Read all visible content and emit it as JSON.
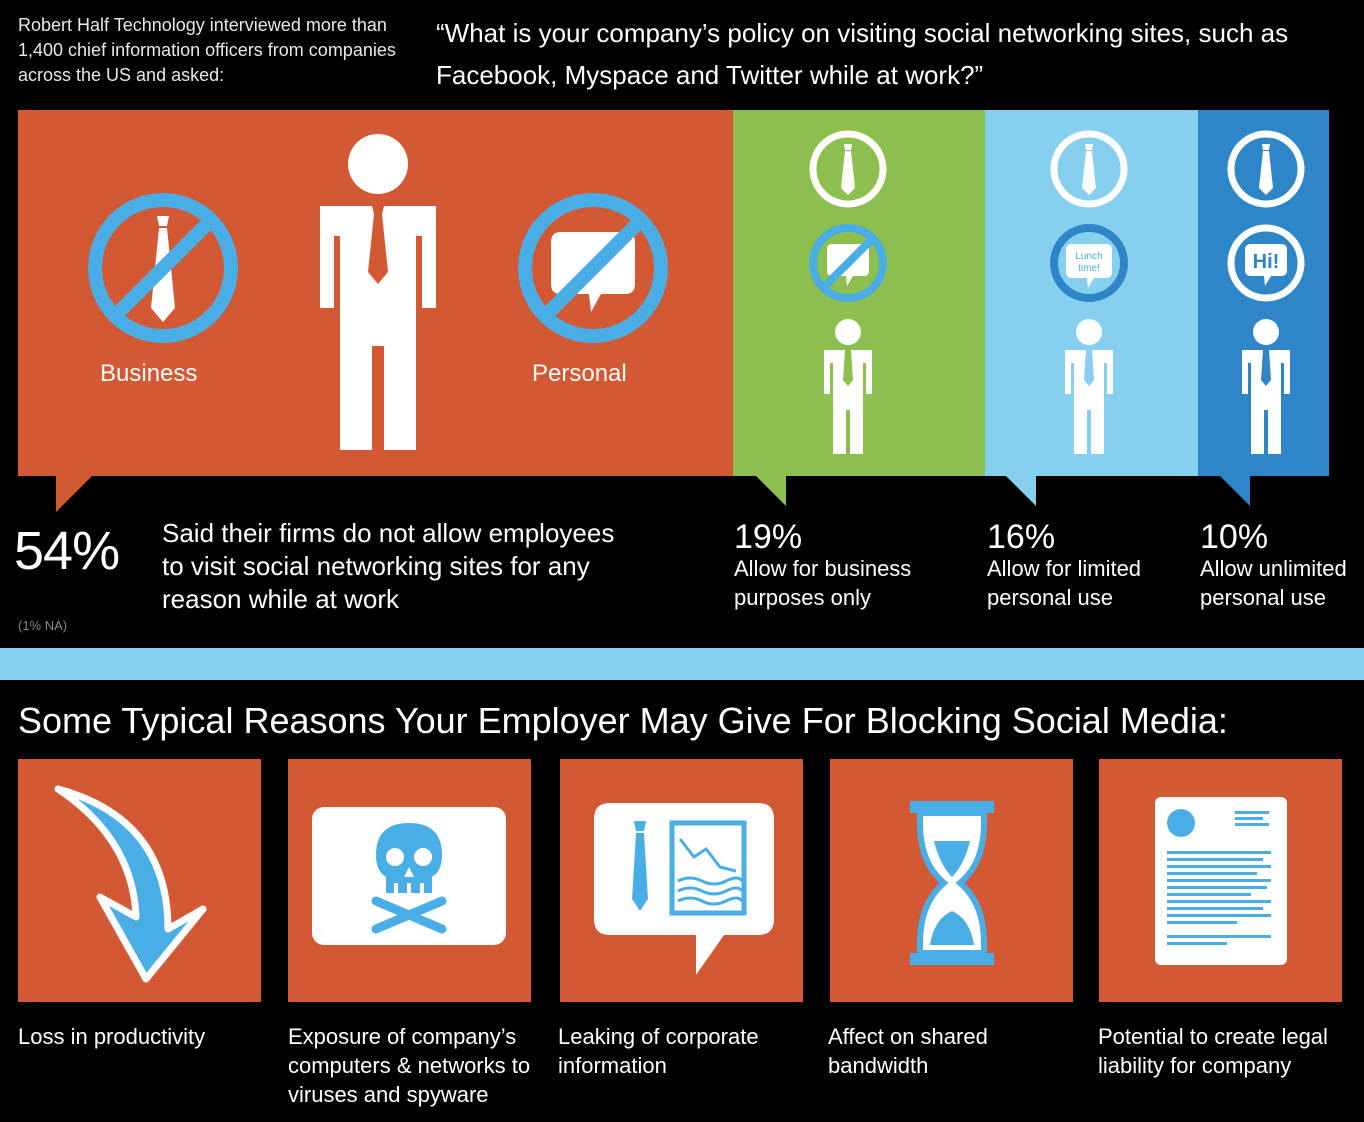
{
  "intro_text": "Robert Half Technology interviewed more than 1,400 chief information officers from companies across the US and asked:",
  "question": "“What is your company’s policy on visiting social networking sites, such as Facebook, Myspace and Twitter while at work?”",
  "colors": {
    "orange": "#d35934",
    "green": "#8cbf4e",
    "light_blue": "#86cfef",
    "blue": "#2e86c8",
    "icon_blue": "#4aaee6",
    "background": "#000000"
  },
  "policy": {
    "block_all": {
      "business_label": "Business",
      "personal_label": "Personal",
      "percent": "54%",
      "description": "Said their firms do not allow employees to visit social networking sites for any reason while at work",
      "note": "(1% NA)"
    },
    "business_only": {
      "percent": "19%",
      "description": "Allow for business purposes only"
    },
    "limited_personal": {
      "percent": "16%",
      "description": "Allow for limited personal use",
      "bubble_text": "Lunch time!"
    },
    "unlimited_personal": {
      "percent": "10%",
      "description": "Allow unlimited personal use",
      "bubble_text": "Hi!"
    }
  },
  "reasons_heading": "Some Typical Reasons Your Employer May Give For Blocking Social Media:",
  "reasons": [
    {
      "icon": "down-arrow-icon",
      "label": "Loss in productivity"
    },
    {
      "icon": "skull-crossbones-icon",
      "label": "Exposure of company’s computers & networks to viruses and spyware"
    },
    {
      "icon": "leaking-chart-speech-icon",
      "label": "Leaking of corporate information"
    },
    {
      "icon": "hourglass-icon",
      "label": "Affect on shared bandwidth"
    },
    {
      "icon": "legal-document-icon",
      "label": "Potential to create legal liability for company"
    }
  ]
}
